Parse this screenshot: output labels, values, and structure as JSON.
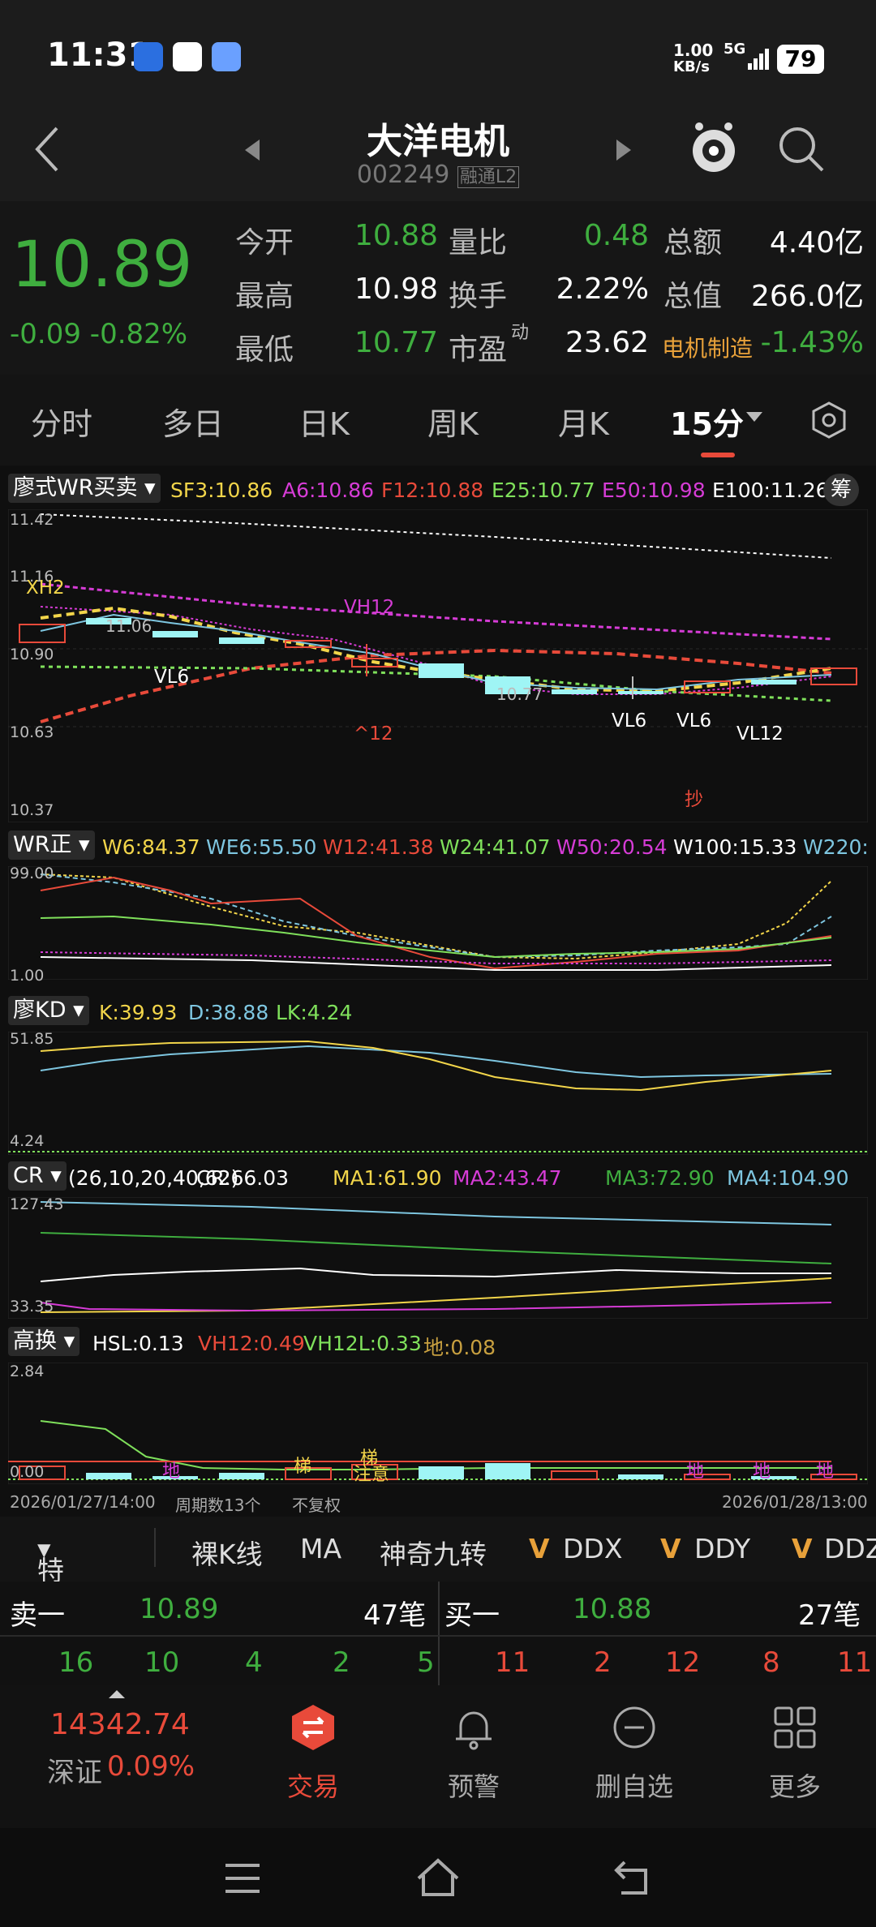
{
  "status": {
    "time": "11:31",
    "net_speed_value": "1.00",
    "net_speed_unit": "KB/s",
    "network": "5G",
    "battery": "79"
  },
  "header": {
    "title": "大洋电机",
    "code": "002249",
    "badges": "融通L2"
  },
  "quote": {
    "price": "10.89",
    "change": "-0.09",
    "change_pct": "-0.82%",
    "rows": [
      {
        "l1": "今开",
        "v1": "10.88",
        "l2": "量比",
        "v2": "0.48",
        "l3": "总额",
        "v3": "4.40亿"
      },
      {
        "l1": "最高",
        "v1": "10.98",
        "l2": "换手",
        "v2": "2.22%",
        "l3": "总值",
        "v3": "266.0亿"
      },
      {
        "l1": "最低",
        "v1": "10.77",
        "l2": "市盈",
        "l2sup": "动",
        "v2": "23.62",
        "l3": "电机制造",
        "v3": "-1.43%"
      }
    ]
  },
  "tabs": [
    "分时",
    "多日",
    "日K",
    "周K",
    "月K",
    "15分"
  ],
  "colors": {
    "up": "#e84a3a",
    "down": "#3fae3f",
    "sf3": "#f2d54a",
    "a6": "#d63cd6",
    "f12": "#e84a3a",
    "e25": "#7fe05b",
    "e50": "#d63cd6",
    "e100": "#ffffff"
  },
  "main_panel": {
    "name": "廖式WR买卖",
    "sf3": "SF3:10.86",
    "a6": "A6:10.86",
    "f12": "F12:10.88",
    "e25": "E25:10.77",
    "e50": "E50:10.98",
    "e100": "E100:11.26",
    "chip": "筹",
    "y_labels": [
      "11.42",
      "11.16",
      "10.90",
      "10.63",
      "10.37"
    ],
    "annotations": {
      "xh2": "XH2",
      "vh12": "VH12",
      "vl6_a": "VL6",
      "vl6_b": "VL6",
      "vl6_c": "VL6",
      "vl12": "VL12",
      "up12": "^12",
      "chao": "抄",
      "p1106": "11.06",
      "p1077": "10.77"
    }
  },
  "wr_panel": {
    "name": "WR正",
    "w6": "W6:84.37",
    "we6": "WE6:55.50",
    "w12": "W12:41.38",
    "w24": "W24:41.07",
    "w50": "W50:20.54",
    "w100": "W100:15.33",
    "w220": "W220:",
    "y_top": "99.00",
    "y_bot": "1.00"
  },
  "kd_panel": {
    "name": "廖KD",
    "k": "K:39.93",
    "d": "D:38.88",
    "lk": "LK:4.24",
    "y_top": "51.85",
    "y_bot": "4.24"
  },
  "cr_panel": {
    "name": "CR",
    "params": "(26,10,20,40,62)",
    "cr": "CR:66.03",
    "ma1": "MA1:61.90",
    "ma2": "MA2:43.47",
    "ma3": "MA3:72.90",
    "ma4": "MA4:104.90",
    "y_top": "127.43",
    "y_bot": "33.35"
  },
  "hsl_panel": {
    "name": "高换",
    "hsl": "HSL:0.13",
    "vh12": "VH12:0.49",
    "vh12l": "VH12L:0.33",
    "di": "地:0.08",
    "y_top": "2.84",
    "y_bot": "0.00",
    "tags": {
      "di1": "地",
      "ti1": "梯",
      "ti2": "梯",
      "zhuyi": "注意",
      "di2": "地",
      "di3": "地",
      "di4": "地"
    }
  },
  "footer_axis": {
    "start": "2026/01/27/14:00",
    "count": "周期数13个",
    "adj": "不复权",
    "end": "2026/01/28/13:00"
  },
  "features": [
    "特色",
    "裸K线",
    "MA",
    "神奇九转",
    "DDX",
    "DDY",
    "DDZ"
  ],
  "orderbook": {
    "sell_label": "卖一",
    "sell_price": "10.89",
    "sell_vol": "47笔",
    "buy_label": "买一",
    "buy_price": "10.88",
    "buy_vol": "27笔",
    "sell_nums": [
      "16",
      "10",
      "4",
      "2",
      "5"
    ],
    "buy_nums": [
      "11",
      "2",
      "12",
      "8",
      "11"
    ]
  },
  "bottom_bar": {
    "index_value": "14342.74",
    "index_name": "深证",
    "index_pct": "0.09%",
    "trade": "交易",
    "alert": "预警",
    "remove": "删自选",
    "more": "更多"
  }
}
